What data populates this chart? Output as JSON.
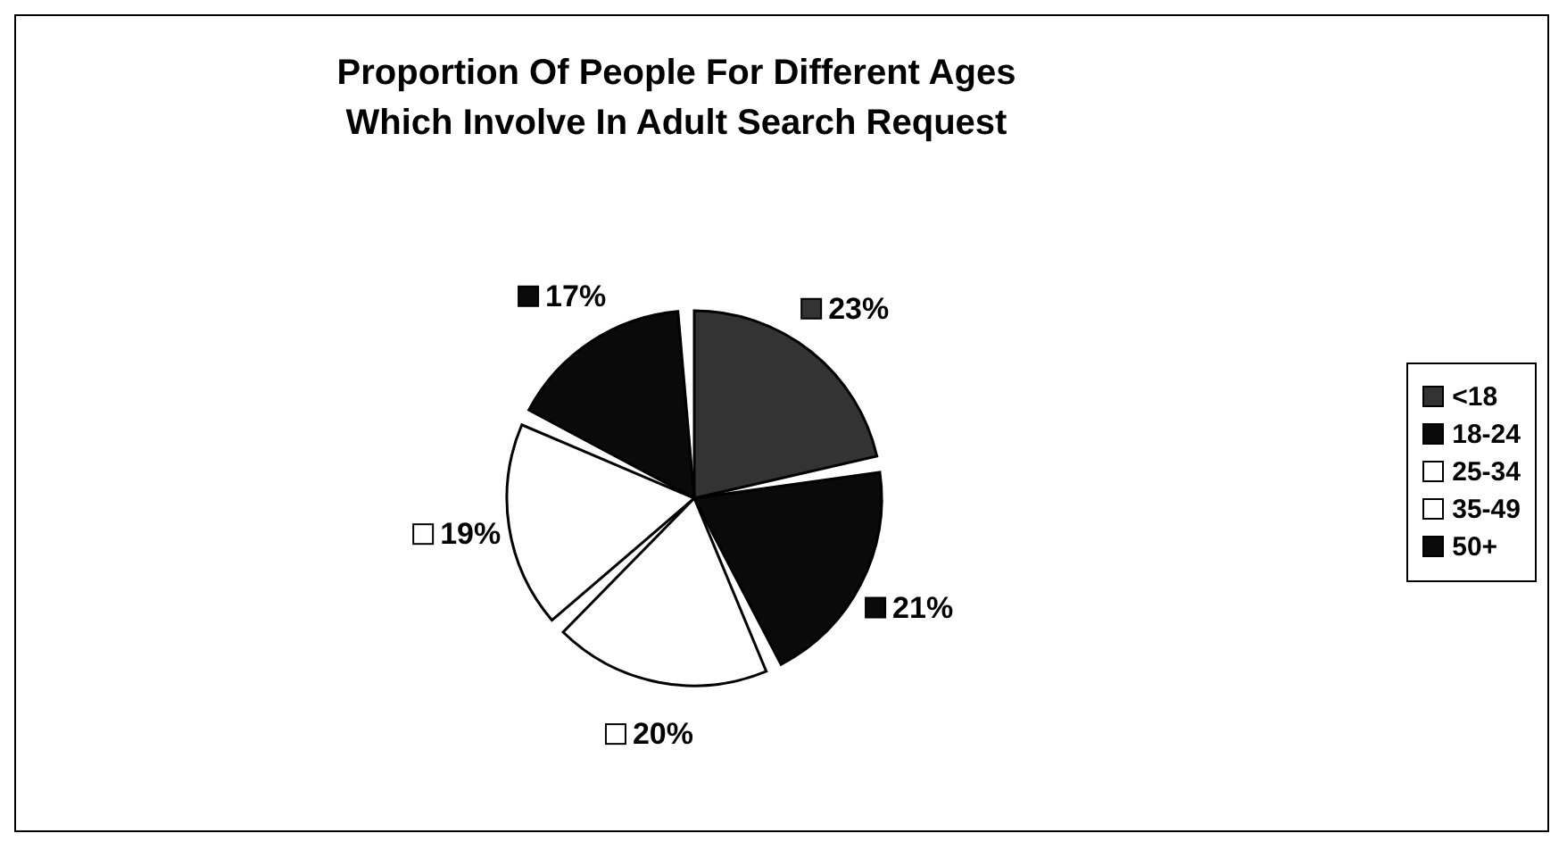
{
  "chart_data": {
    "type": "pie",
    "title": "Proportion Of People For Different Ages Which Involve In Adult Search Request",
    "categories": [
      "<18",
      "18-24",
      "25-34",
      "35-49",
      "50+"
    ],
    "values": [
      23,
      21,
      20,
      19,
      17
    ],
    "value_labels": [
      "23%",
      "21%",
      "20%",
      "19%",
      "17%"
    ],
    "colors": [
      "#333333",
      "#0a0a0a",
      "#ffffff",
      "#ffffff",
      "#0a0a0a"
    ],
    "legend": "right"
  }
}
